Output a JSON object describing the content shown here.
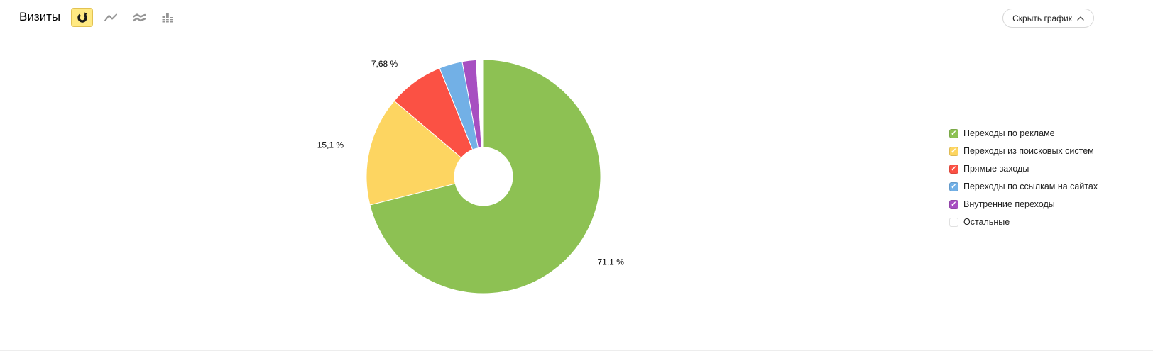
{
  "header": {
    "title": "Визиты",
    "hide_button_label": "Скрыть график",
    "chart_type_buttons": [
      {
        "icon": "pie-chart-icon",
        "active": true
      },
      {
        "icon": "line-chart-icon",
        "active": false
      },
      {
        "icon": "stacked-area-icon",
        "active": false
      },
      {
        "icon": "bar-chart-icon",
        "active": false
      }
    ],
    "active_toggle_colors": {
      "bg": "#ffe982",
      "border": "#e2c252"
    }
  },
  "chart_data": {
    "type": "pie",
    "donut": true,
    "title": "Визиты",
    "start_angle_deg": 0,
    "direction": "clockwise",
    "legend_position": "right",
    "series": [
      {
        "label": "Переходы по рекламе",
        "value": 71.1,
        "display": "71,1 %",
        "color": "#8dc153"
      },
      {
        "label": "Переходы из поисковых систем",
        "value": 15.1,
        "display": "15,1 %",
        "color": "#fdd561"
      },
      {
        "label": "Прямые заходы",
        "value": 7.68,
        "display": "7,68 %",
        "color": "#fb5144"
      },
      {
        "label": "Переходы по ссылкам на сайтах",
        "value": 3.2,
        "color": "#72b0e6"
      },
      {
        "label": "Внутренние переходы",
        "value": 1.9,
        "color": "#a74fc1"
      },
      {
        "label": "Остальные",
        "value": 1.02,
        "color": "#ffffff"
      }
    ]
  }
}
